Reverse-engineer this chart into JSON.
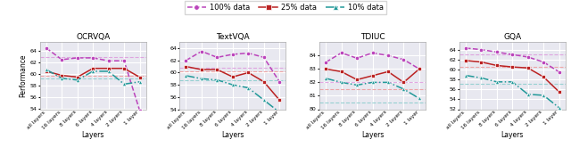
{
  "x_labels": [
    "all layers",
    "16 layers",
    "8 layers",
    "6 layers",
    "4 layers",
    "2 layers",
    "1 layer"
  ],
  "titles": [
    "OCRVQA",
    "TextVQA",
    "TDIUC",
    "GQA"
  ],
  "xlabel": "Layers",
  "ylabel": "Performance",
  "legend_labels": [
    "100% data",
    "25% data",
    "10% data"
  ],
  "colors": [
    "#bb44bb",
    "#bb2222",
    "#229999"
  ],
  "series": {
    "OCRVQA": {
      "100%": [
        64.5,
        62.5,
        62.8,
        62.8,
        62.3,
        62.3,
        53.8
      ],
      "25%": [
        60.5,
        59.8,
        59.5,
        61.0,
        61.0,
        61.0,
        59.5
      ],
      "10%": [
        60.8,
        59.3,
        59.0,
        60.5,
        60.5,
        58.3,
        58.7
      ]
    },
    "TextVQA": {
      "100%": [
        62.0,
        63.5,
        62.5,
        63.0,
        63.2,
        62.5,
        58.5
      ],
      "25%": [
        61.0,
        60.5,
        60.5,
        59.3,
        60.0,
        58.5,
        55.5
      ],
      "10%": [
        59.5,
        59.0,
        58.8,
        58.0,
        57.5,
        55.5,
        53.5
      ]
    },
    "TDIUC": {
      "100%": [
        83.5,
        84.2,
        83.8,
        84.2,
        84.0,
        83.7,
        83.0
      ],
      "25%": [
        83.0,
        82.8,
        82.2,
        82.5,
        82.8,
        82.0,
        83.0
      ],
      "10%": [
        82.3,
        82.0,
        81.8,
        82.0,
        82.0,
        81.5,
        80.8
      ]
    },
    "GQA": {
      "100%": [
        64.3,
        64.0,
        63.5,
        63.0,
        62.5,
        61.5,
        59.5
      ],
      "25%": [
        61.8,
        61.5,
        60.8,
        60.5,
        60.3,
        58.5,
        55.5
      ],
      "10%": [
        58.8,
        58.3,
        57.5,
        57.5,
        55.0,
        54.8,
        52.3
      ]
    }
  },
  "hlines": {
    "OCRVQA": {
      "100%": 63.0,
      "25%": 59.7,
      "10%": 59.3
    },
    "TextVQA": {
      "100%": 60.8,
      "25%": 60.2,
      "10%": 58.8
    },
    "TDIUC": {
      "100%": 82.0,
      "25%": 81.5,
      "10%": 80.5
    },
    "GQA": {
      "100%": 63.0,
      "25%": 60.5,
      "10%": 57.2
    }
  },
  "ylims": {
    "OCRVQA": [
      54.0,
      65.5
    ],
    "TextVQA": [
      54.0,
      65.0
    ],
    "TDIUC": [
      80.0,
      85.0
    ],
    "GQA": [
      52.0,
      65.5
    ]
  },
  "yticks": {
    "OCRVQA": [
      54,
      56,
      58,
      60,
      62,
      64
    ],
    "TextVQA": [
      54,
      56,
      58,
      60,
      62,
      64
    ],
    "TDIUC": [
      80,
      81,
      82,
      83,
      84
    ],
    "GQA": [
      52,
      54,
      56,
      58,
      60,
      62,
      64
    ]
  },
  "bg_color": "#e8e8f0",
  "grid_color": "#ffffff",
  "hline_colors": [
    "#dd99dd",
    "#ee9999",
    "#88cccc"
  ]
}
